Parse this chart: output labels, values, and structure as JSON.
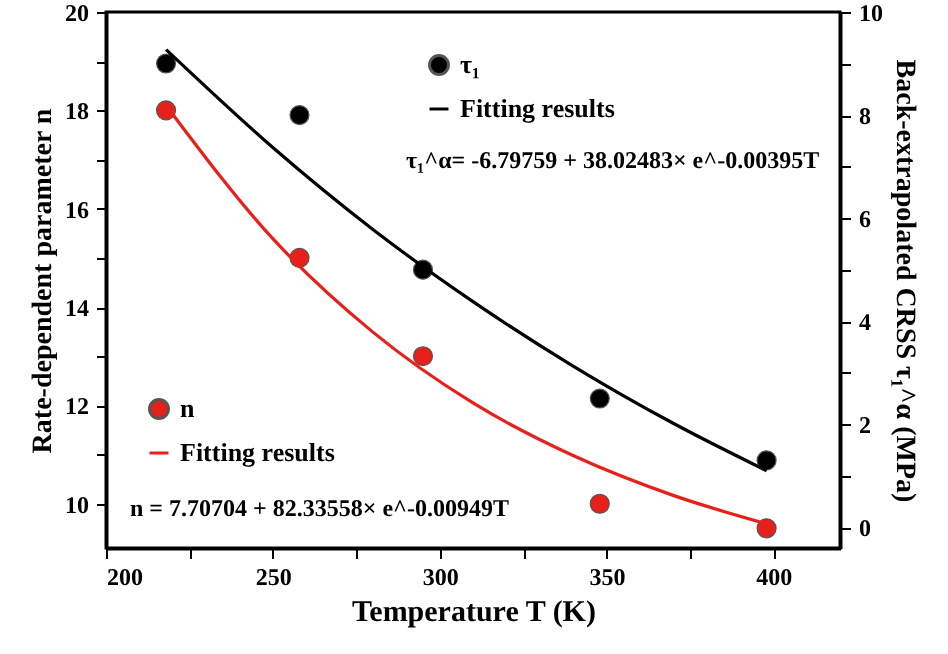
{
  "chart_data": {
    "type": "scatter",
    "xlabel": "Temperature T (K)",
    "ylabel": "Rate-dependent parameter n",
    "y2label": "Back-extrapolated CRSS τ₁^α (MPa)",
    "xlim": [
      200,
      420
    ],
    "xticks": [
      200,
      {
        "value": 225,
        "label": null
      },
      250,
      {
        "value": 275,
        "label": null
      },
      300,
      {
        "value": 325,
        "label": null
      },
      350,
      {
        "value": 375,
        "label": null
      },
      400
    ],
    "ylim": [
      9.1,
      20
    ],
    "yticks": [
      10,
      {
        "value": 11,
        "label": null
      },
      12,
      {
        "value": 13,
        "label": null
      },
      14,
      {
        "value": 15,
        "label": null
      },
      16,
      {
        "value": 17,
        "label": null
      },
      18,
      {
        "value": 19,
        "label": null
      },
      20
    ],
    "y2lim": [
      -0.4,
      10
    ],
    "y2ticks": [
      0,
      {
        "value": 1,
        "label": null
      },
      2,
      {
        "value": 3,
        "label": null
      },
      4,
      {
        "value": 5,
        "label": null
      },
      6,
      {
        "value": 7,
        "label": null
      },
      8,
      {
        "value": 9,
        "label": null
      },
      10
    ],
    "grid": false,
    "legend": "top left",
    "series": [
      {
        "name": "τ₁",
        "axis": "y2",
        "color": "#000000",
        "x": [
          218,
          258,
          295,
          348,
          398
        ],
        "values": [
          9.0,
          8.0,
          5.0,
          2.5,
          1.3
        ]
      },
      {
        "name": "Fitting results",
        "type": "line",
        "axis": "y2",
        "color": "#000000",
        "x": [
          218,
          250,
          280,
          310,
          340,
          370,
          398
        ],
        "values": [
          9.27,
          7.37,
          5.78,
          4.38,
          3.13,
          2.02,
          1.1
        ]
      },
      {
        "name": "n",
        "color": "#e8201c",
        "x": [
          218,
          258,
          295,
          348,
          398
        ],
        "values": [
          18.0,
          15.0,
          13.0,
          10.0,
          9.5
        ]
      },
      {
        "name": "Fitting results",
        "type": "line",
        "color": "#e8201c",
        "x": [
          218,
          250,
          280,
          310,
          340,
          370,
          398
        ],
        "values": [
          18.1,
          15.39,
          13.49,
          12.05,
          10.98,
          10.17,
          9.59
        ]
      }
    ],
    "annotations": [
      "τ₁^α= -6.79759 + 38.02483× e^-0.00395T",
      "n = 7.70704 + 82.33558× e^-0.00949T"
    ]
  }
}
